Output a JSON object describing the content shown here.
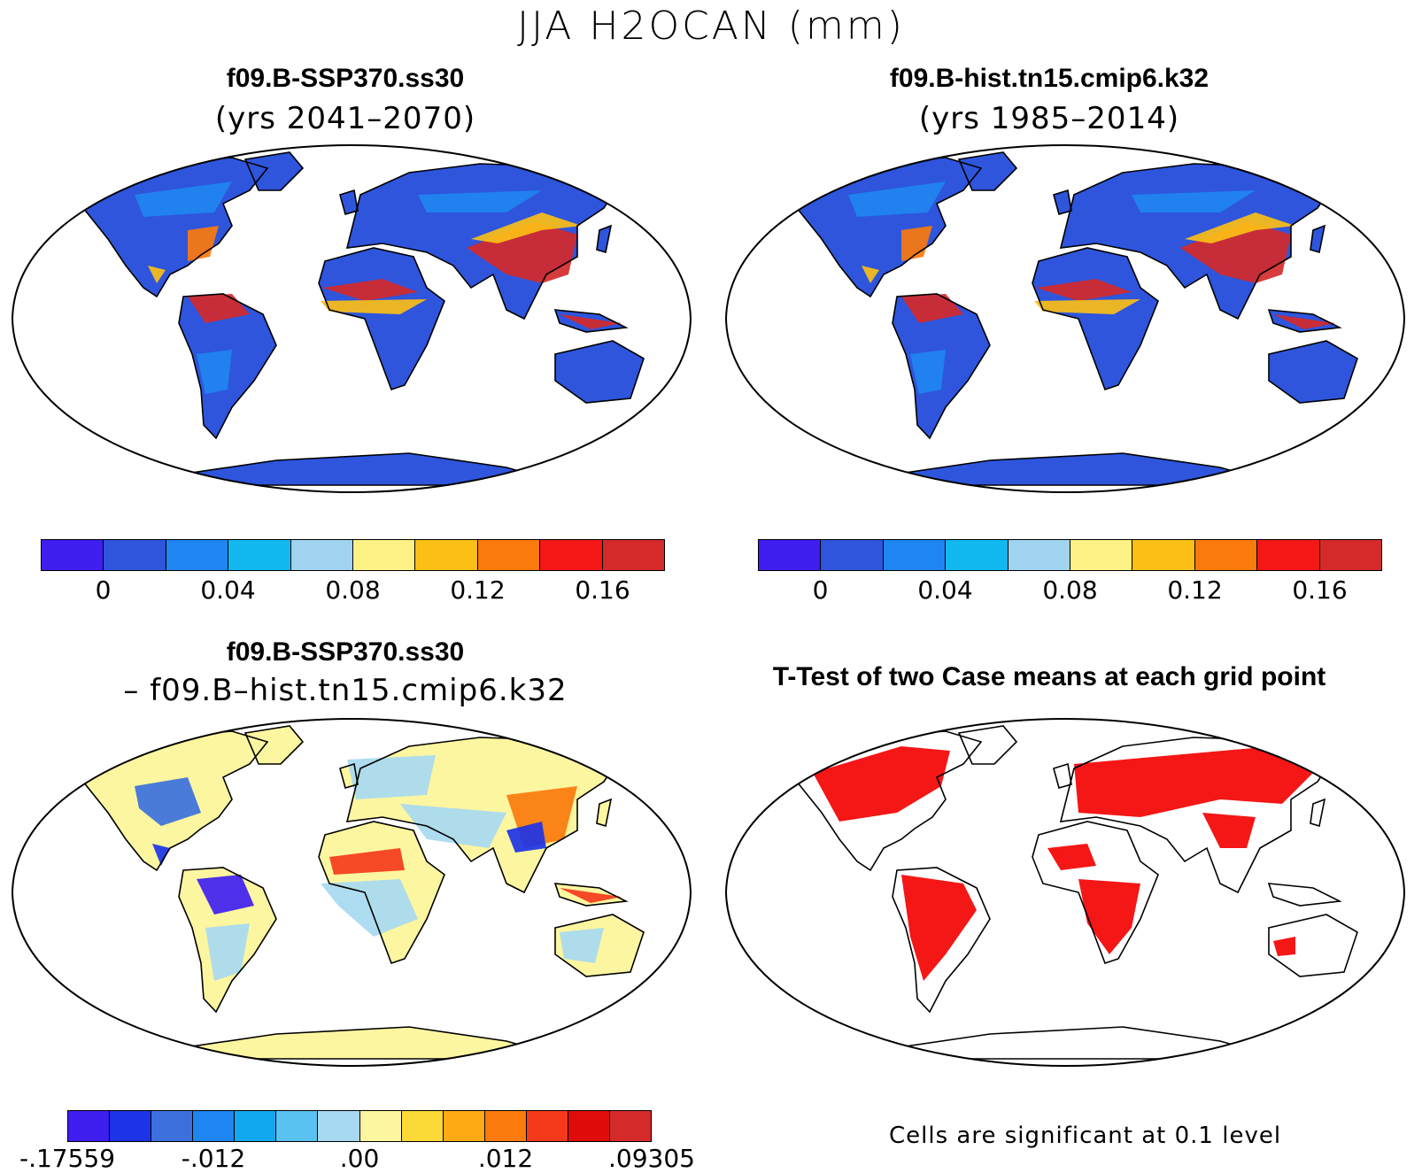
{
  "title": "JJA H2OCAN (mm)",
  "panels": [
    {
      "title": "f09.B-SSP370.ss30",
      "subtitle": "(yrs 2041–2070)",
      "map_style": "abs"
    },
    {
      "title": "f09.B-hist.tn15.cmip6.k32",
      "subtitle": "(yrs 1985–2014)",
      "map_style": "abs"
    },
    {
      "title": "f09.B-SSP370.ss30",
      "subtitle": "– f09.B–hist.tn15.cmip6.k32",
      "map_style": "diff"
    },
    {
      "title": "T-Test of two Case means at each grid point",
      "subtitle": "",
      "map_style": "sig"
    }
  ],
  "colorbars": {
    "abs": {
      "colors": [
        "#3f1ef0",
        "#2e55dc",
        "#1f85f0",
        "#12b8f0",
        "#9fd3f0",
        "#fdf185",
        "#fbbf16",
        "#fb7a0d",
        "#f51616",
        "#d52a2a"
      ],
      "ticks": [
        "0",
        "0.04",
        "0.08",
        "0.12",
        "0.16"
      ]
    },
    "diff": {
      "colors": [
        "#3f1ef0",
        "#1c33e6",
        "#3c70dd",
        "#1f85f0",
        "#11a8ef",
        "#59c2f0",
        "#a7d9f0",
        "#fdf6a0",
        "#fbd936",
        "#fbaa14",
        "#fb7a0d",
        "#f5391a",
        "#e00c0c",
        "#d52a2a"
      ],
      "ticks": [
        "-.17559",
        "-.012",
        ".00",
        ".012",
        ".09305"
      ]
    }
  },
  "significance_note": "Cells are significant at 0.1 level",
  "map_colors": {
    "ocean": "#ffffff",
    "land_base": "#2e55dc",
    "diff_base": "#fdf6a0",
    "sig": "#f51616"
  }
}
